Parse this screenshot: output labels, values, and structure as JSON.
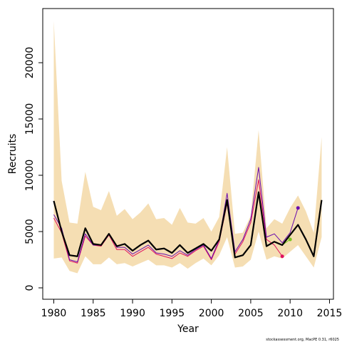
{
  "chart_data": {
    "type": "line",
    "xlabel": "Year",
    "ylabel": "Recruits",
    "footnote": "stockassessment.org, MacPE 0.31, r6025",
    "x": [
      1980,
      1981,
      1982,
      1983,
      1984,
      1985,
      1986,
      1987,
      1988,
      1989,
      1990,
      1991,
      1992,
      1993,
      1994,
      1995,
      1996,
      1997,
      1998,
      1999,
      2000,
      2001,
      2002,
      2003,
      2004,
      2005,
      2006,
      2007,
      2008,
      2009,
      2010,
      2011,
      2012,
      2013,
      2014
    ],
    "band": {
      "color": "#f5deb3",
      "upper": [
        23700,
        9500,
        5800,
        5700,
        10300,
        7200,
        6900,
        8600,
        6400,
        7000,
        6100,
        6700,
        7500,
        6100,
        6200,
        5600,
        7100,
        5800,
        5700,
        6200,
        5000,
        6300,
        12500,
        4800,
        4900,
        6400,
        14000,
        5300,
        6100,
        5700,
        7100,
        8200,
        6800,
        4900,
        13400
      ],
      "lower": [
        2600,
        2700,
        1500,
        1300,
        2800,
        2100,
        2100,
        2700,
        2100,
        2200,
        1900,
        2200,
        2500,
        2000,
        2000,
        1800,
        2200,
        1700,
        2200,
        2600,
        2000,
        2900,
        4500,
        1800,
        1900,
        2500,
        5000,
        2500,
        2800,
        2600,
        3200,
        3800,
        2800,
        1800,
        4500
      ]
    },
    "series": [
      {
        "color": "#e0115f",
        "width": 1,
        "values": [
          6200,
          4900,
          2400,
          2200,
          4600,
          3800,
          3700,
          4700,
          3400,
          3400,
          2800,
          3200,
          3600,
          3000,
          2800,
          2600,
          3100,
          2800,
          3300,
          3700,
          2500,
          4100,
          7500,
          3000,
          4100,
          5800,
          9600,
          4300,
          3800,
          2800,
          null,
          null,
          null,
          null,
          null
        ]
      },
      {
        "color": "#7cc520",
        "width": 1,
        "values": [
          7700,
          5000,
          2900,
          2800,
          5300,
          3900,
          3800,
          4800,
          3700,
          3900,
          3300,
          3800,
          4200,
          3400,
          3500,
          3100,
          3800,
          3100,
          3500,
          3900,
          3300,
          4300,
          7800,
          2700,
          2900,
          3800,
          8500,
          3700,
          4100,
          3800,
          4300,
          null,
          null,
          null,
          null
        ]
      },
      {
        "color": "#6a0dad",
        "width": 1,
        "values": [
          6500,
          5300,
          2500,
          2300,
          4800,
          3800,
          3800,
          4800,
          3600,
          3600,
          3000,
          3400,
          3800,
          3100,
          3000,
          2800,
          3300,
          2900,
          3400,
          3800,
          2600,
          4300,
          8400,
          3200,
          4300,
          6100,
          10700,
          4500,
          4800,
          4000,
          4900,
          7100,
          null,
          null,
          null
        ]
      },
      {
        "color": "#000000",
        "width": 2.2,
        "values": [
          7720,
          5000,
          2900,
          2800,
          5300,
          3900,
          3800,
          4800,
          3700,
          3900,
          3300,
          3800,
          4200,
          3400,
          3500,
          3100,
          3800,
          3100,
          3500,
          3900,
          3300,
          4300,
          7800,
          2700,
          2900,
          3800,
          8500,
          3700,
          4100,
          3800,
          4700,
          5600,
          4300,
          2800,
          7800
        ]
      }
    ],
    "xlim": [
      1978.6,
      2015.5
    ],
    "ylim": [
      -1013,
      24810
    ],
    "xticks": [
      1980,
      1985,
      1990,
      1995,
      2000,
      2005,
      2010,
      2015
    ],
    "yticks": [
      0,
      5000,
      10000,
      15000,
      20000
    ]
  }
}
